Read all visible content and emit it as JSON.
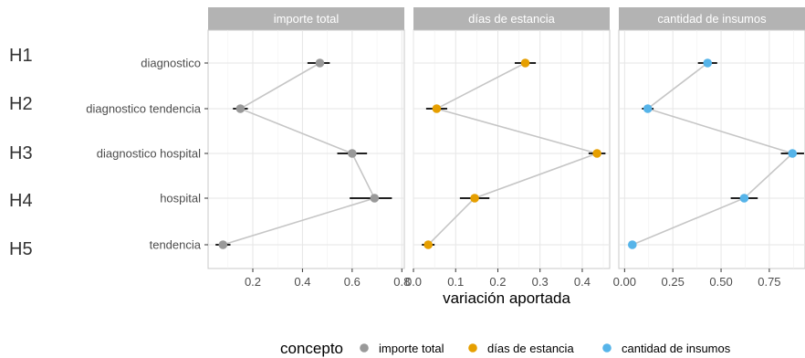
{
  "chart_data": {
    "type": "scatter",
    "xlabel": "variación aportada",
    "ylabel": "",
    "categories": [
      "diagnostico",
      "diagnostico tendencia",
      "diagnostico hospital",
      "hospital",
      "tendencia"
    ],
    "row_labels": [
      "H1",
      "H2",
      "H3",
      "H4",
      "H5"
    ],
    "grid": true,
    "legend": {
      "title": "concepto",
      "placement": "bottom",
      "entries": [
        "importe total",
        "días de estancia",
        "cantidad de insumos"
      ]
    },
    "panels": [
      {
        "name": "importe total",
        "color": "#999999",
        "xlim": [
          0.02,
          0.81
        ],
        "ticks": [
          0.2,
          0.4,
          0.6,
          0.8
        ],
        "tick_labels": [
          "0.2",
          "0.4",
          "0.6",
          "0.8"
        ],
        "points": [
          {
            "category": "diagnostico",
            "value": 0.47,
            "low": 0.42,
            "high": 0.51
          },
          {
            "category": "diagnostico tendencia",
            "value": 0.15,
            "low": 0.12,
            "high": 0.18
          },
          {
            "category": "diagnostico hospital",
            "value": 0.6,
            "low": 0.54,
            "high": 0.66
          },
          {
            "category": "hospital",
            "value": 0.69,
            "low": 0.59,
            "high": 0.76
          },
          {
            "category": "tendencia",
            "value": 0.08,
            "low": 0.05,
            "high": 0.11
          }
        ]
      },
      {
        "name": "días de estancia",
        "color": "#E69F00",
        "xlim": [
          0.0,
          0.465
        ],
        "ticks": [
          0.0,
          0.1,
          0.2,
          0.3,
          0.4
        ],
        "tick_labels": [
          "0.0",
          "0.1",
          "0.2",
          "0.3",
          "0.4"
        ],
        "points": [
          {
            "category": "diagnostico",
            "value": 0.265,
            "low": 0.24,
            "high": 0.29
          },
          {
            "category": "diagnostico tendencia",
            "value": 0.055,
            "low": 0.03,
            "high": 0.08
          },
          {
            "category": "diagnostico hospital",
            "value": 0.435,
            "low": 0.415,
            "high": 0.455
          },
          {
            "category": "hospital",
            "value": 0.145,
            "low": 0.11,
            "high": 0.18
          },
          {
            "category": "tendencia",
            "value": 0.035,
            "low": 0.02,
            "high": 0.05
          }
        ]
      },
      {
        "name": "cantidad de insumos",
        "color": "#56B4E9",
        "xlim": [
          -0.03,
          0.935
        ],
        "ticks": [
          0.0,
          0.25,
          0.5,
          0.75
        ],
        "tick_labels": [
          "0.00",
          "0.25",
          "0.50",
          "0.75"
        ],
        "points": [
          {
            "category": "diagnostico",
            "value": 0.43,
            "low": 0.38,
            "high": 0.48
          },
          {
            "category": "diagnostico tendencia",
            "value": 0.12,
            "low": 0.09,
            "high": 0.15
          },
          {
            "category": "diagnostico hospital",
            "value": 0.87,
            "low": 0.81,
            "high": 0.93
          },
          {
            "category": "hospital",
            "value": 0.62,
            "low": 0.55,
            "high": 0.69
          },
          {
            "category": "tendencia",
            "value": 0.04,
            "low": 0.02,
            "high": 0.06
          }
        ]
      }
    ]
  }
}
